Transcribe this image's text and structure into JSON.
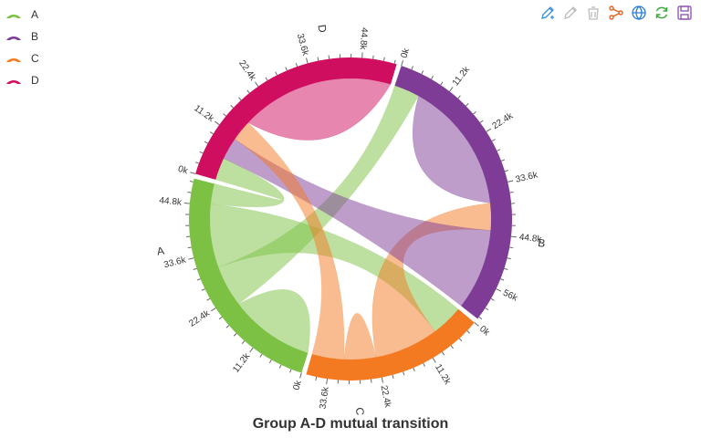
{
  "title": "Group A-D mutual transition",
  "legend": [
    {
      "label": "A",
      "color": "#7cc144"
    },
    {
      "label": "B",
      "color": "#7e3c96"
    },
    {
      "label": "C",
      "color": "#f47a22"
    },
    {
      "label": "D",
      "color": "#cf0e5f"
    }
  ],
  "toolbox": [
    {
      "name": "edit-icon",
      "color": "#3a8fd6"
    },
    {
      "name": "eraser-icon",
      "color": "#bbbbbb"
    },
    {
      "name": "trash-icon",
      "color": "#bbbbbb"
    },
    {
      "name": "graph-icon",
      "color": "#e8601c"
    },
    {
      "name": "globe-icon",
      "color": "#2a7cd6"
    },
    {
      "name": "refresh-icon",
      "color": "#3aa83a"
    },
    {
      "name": "save-icon",
      "color": "#8a4db0"
    }
  ],
  "chart_data": {
    "type": "chord",
    "title": "Group A-D mutual transition",
    "groups": [
      "A",
      "B",
      "C",
      "D"
    ],
    "colors": [
      "#7cc144",
      "#7e3c96",
      "#f47a22",
      "#cf0e5f"
    ],
    "tick_step": 11200,
    "tick_label_suffix": "k",
    "group_totals": [
      50000,
      63200,
      38000,
      52000
    ],
    "matrix": [
      [
        11975,
        5871,
        8916,
        2868
      ],
      [
        1951,
        10048,
        2060,
        6171
      ],
      [
        8010,
        16145,
        8090,
        8045
      ],
      [
        1013,
        990,
        940,
        6907
      ]
    ]
  }
}
